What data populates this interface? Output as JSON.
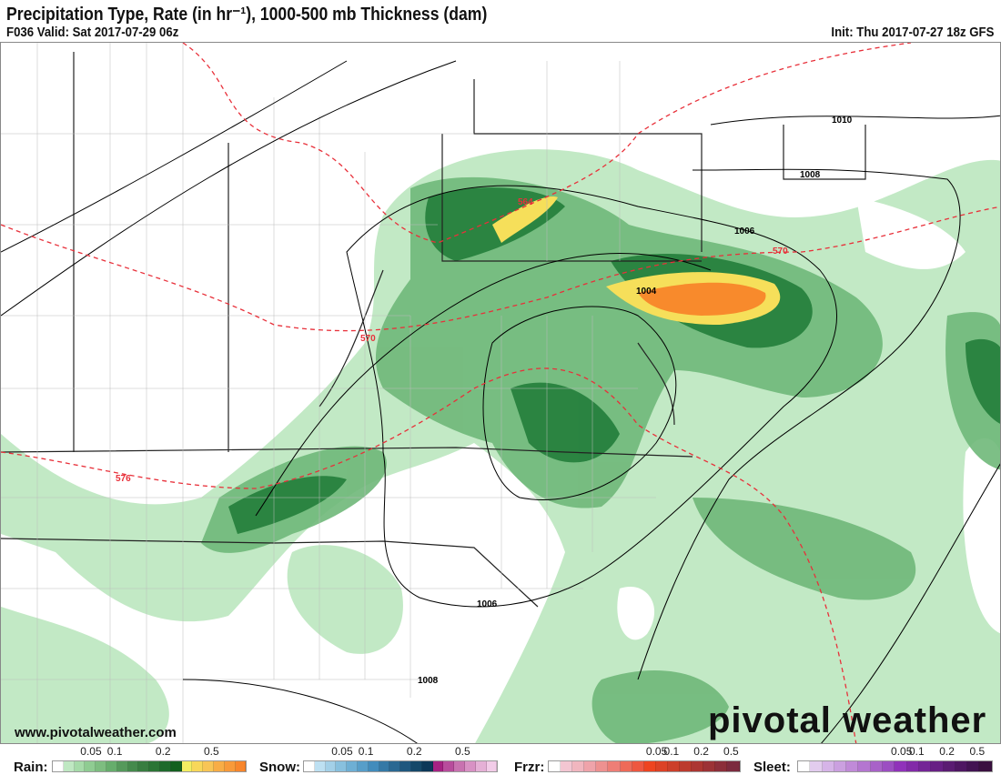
{
  "header": {
    "title": "Precipitation Type, Rate (in hr⁻¹), 1000-500 mb Thickness (dam)",
    "valid": "F036 Valid: Sat 2017-07-29 06z",
    "init": "Init: Thu 2017-07-27 18z GFS"
  },
  "map": {
    "isobar_labels": [
      "1010",
      "1008",
      "1006",
      "1004",
      "1006",
      "1008"
    ],
    "thickness_labels": [
      "564",
      "570",
      "570",
      "576"
    ],
    "colors": {
      "isobar": "#000000",
      "thickness": "#e8303a",
      "rain_light": "#bfe8c2",
      "rain_mid": "#6fb879",
      "rain_heavy": "#1d7a36",
      "heavy_yellow": "#f6df5a",
      "heavy_orange": "#f88a2c"
    }
  },
  "footer": {
    "website": "www.pivotalweather.com",
    "logo": "pivotal weather"
  },
  "legend": [
    {
      "label": "Rain:",
      "ticks": [
        "0.05",
        "0.1",
        "0.2",
        "0.5"
      ],
      "colors": [
        "#ffffff",
        "#bfe8c2",
        "#a6dba9",
        "#8fcc92",
        "#7dbd80",
        "#66ad6c",
        "#55995b",
        "#458a4c",
        "#387d40",
        "#2b7535",
        "#1e6a2c",
        "#13601f",
        "#f4ee62",
        "#f8d75a",
        "#f8c556",
        "#f8ad46",
        "#f89a3a",
        "#f8862c"
      ]
    },
    {
      "label": "Snow:",
      "ticks": [
        "0.05",
        "0.1",
        "0.2",
        "0.5"
      ],
      "colors": [
        "#ffffff",
        "#bde0f2",
        "#a3d0e8",
        "#88c0de",
        "#6eafd4",
        "#579ec9",
        "#428cbc",
        "#3579a6",
        "#2a6892",
        "#1f577e",
        "#154869",
        "#0c3858",
        "#a62283",
        "#b84c9c",
        "#c872b0",
        "#d891c4",
        "#e5b0d6",
        "#f2cce8"
      ]
    },
    {
      "label": "Frzr:",
      "ticks": [
        "0.05",
        "0.1",
        "0.2",
        "0.5"
      ],
      "colors": [
        "#ffffff",
        "#f3c6d2",
        "#f1b6bf",
        "#efa3aa",
        "#ee9190",
        "#ee7e76",
        "#ee6a58",
        "#ee5740",
        "#ee4420",
        "#dc4226",
        "#cc3f2a",
        "#bc3b2e",
        "#ac3632",
        "#9c3236",
        "#8c2e3a",
        "#7c2a3e"
      ]
    },
    {
      "label": "Sleet:",
      "ticks": [
        "0.05",
        "0.1",
        "0.2",
        "0.5"
      ],
      "colors": [
        "#ffffff",
        "#e2ccee",
        "#d6b4e8",
        "#cba0e0",
        "#c08ad8",
        "#b476d0",
        "#a862c8",
        "#9c4ec2",
        "#9032ba",
        "#822aa8",
        "#742596",
        "#672084",
        "#5a1c72",
        "#4e1762",
        "#421352",
        "#3a1040"
      ]
    }
  ]
}
